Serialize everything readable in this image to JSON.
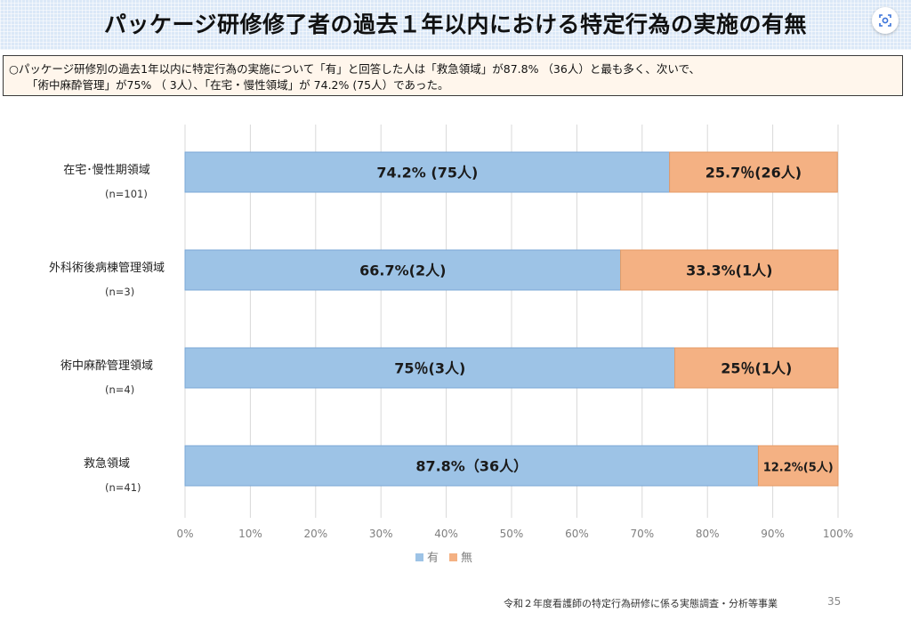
{
  "header": {
    "title": "パッケージ研修修了者の過去１年以内における特定行為の実施の有無"
  },
  "summary": {
    "line1": "○パッケージ研修別の過去1年以内に特定行為の実施について「有」と回答した人は「救急領域」が87.8% （36人）と最も多く、次いで、",
    "line2": "「術中麻酔管理」が75% （ 3人）、「在宅・慢性領域」が 74.2% (75人）であった。"
  },
  "chart_data": {
    "type": "bar",
    "orientation": "horizontal",
    "stacked": true,
    "categories": [
      "在宅･慢性期領域",
      "外科術後病棟管理領域",
      "術中麻酔管理領域",
      "救急領域"
    ],
    "n_labels": [
      "(n=101)",
      "(n=3)",
      "(n=4)",
      "(n=41)"
    ],
    "series": [
      {
        "name": "有",
        "color": "#9dc3e6",
        "values": [
          74.2,
          66.7,
          75,
          87.8
        ],
        "labels": [
          "74.2% (75人)",
          "66.7%(2人)",
          "75％(3人)",
          "87.8%（36人）"
        ]
      },
      {
        "name": "無",
        "color": "#f4b183",
        "values": [
          25.7,
          33.3,
          25,
          12.2
        ],
        "labels": [
          "25.7％(26人)",
          "33.3%(1人)",
          "25％(1人)",
          "12.2%(5人)"
        ]
      }
    ],
    "xlim": [
      0,
      100
    ],
    "xticks": [
      "0%",
      "10%",
      "20%",
      "30%",
      "40%",
      "50%",
      "60%",
      "70%",
      "80%",
      "90%",
      "100%"
    ],
    "grid": true,
    "legend_position": "bottom"
  },
  "footer": {
    "source": "令和２年度看護師の特定行為研修に係る実態調査・分析等事業",
    "page": "35"
  }
}
